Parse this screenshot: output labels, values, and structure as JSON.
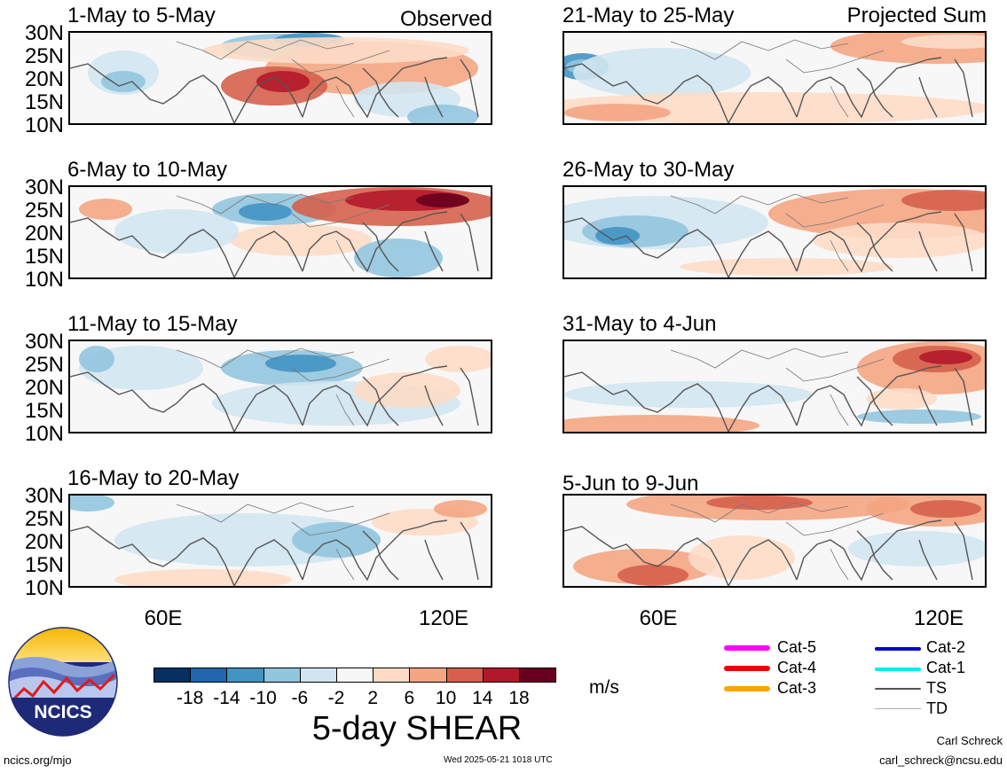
{
  "colors": {
    "scale": [
      "#053061",
      "#2166ac",
      "#4393c3",
      "#92c5de",
      "#d1e5f0",
      "#f7f7f7",
      "#fddbc7",
      "#f4a582",
      "#d6604d",
      "#b2182b",
      "#67001f"
    ]
  },
  "latitude_ticks": [
    "30N",
    "25N",
    "20N",
    "15N",
    "10N"
  ],
  "longitude_ticks": [
    "60E",
    "120E"
  ],
  "left_column_label": "Observed",
  "right_column_label": "Projected Sum",
  "panels": {
    "left": [
      {
        "title": "1-May to 5-May"
      },
      {
        "title": "6-May to 10-May"
      },
      {
        "title": "11-May to 15-May"
      },
      {
        "title": "16-May to 20-May"
      }
    ],
    "right": [
      {
        "title": "21-May to 25-May"
      },
      {
        "title": "26-May to 30-May"
      },
      {
        "title": "31-May to 4-Jun"
      },
      {
        "title": "5-Jun to 9-Jun"
      }
    ]
  },
  "colorbar": {
    "labels": [
      "-18",
      "-14",
      "-10",
      "-6",
      "-2",
      "2",
      "6",
      "10",
      "14",
      "18"
    ],
    "unit": "m/s",
    "title": "5-day SHEAR"
  },
  "legend": {
    "items": [
      {
        "label": "Cat-5",
        "color": "#ff00ff"
      },
      {
        "label": "Cat-4",
        "color": "#ee0000"
      },
      {
        "label": "Cat-3",
        "color": "#ffa500"
      },
      {
        "label": "Cat-2",
        "color": "#0000cc"
      },
      {
        "label": "Cat-1",
        "color": "#00eeee"
      },
      {
        "label": "TS",
        "color": "#555555"
      },
      {
        "label": "TD",
        "color": "#aaaaaa"
      }
    ]
  },
  "logo": {
    "text": "NCICS"
  },
  "footer": {
    "website": "ncics.org/mjo",
    "timestamp": "Wed 2025-05-21 1018 UTC",
    "author": "Carl Schreck",
    "email": "carl_schreck@ncsu.edu"
  }
}
